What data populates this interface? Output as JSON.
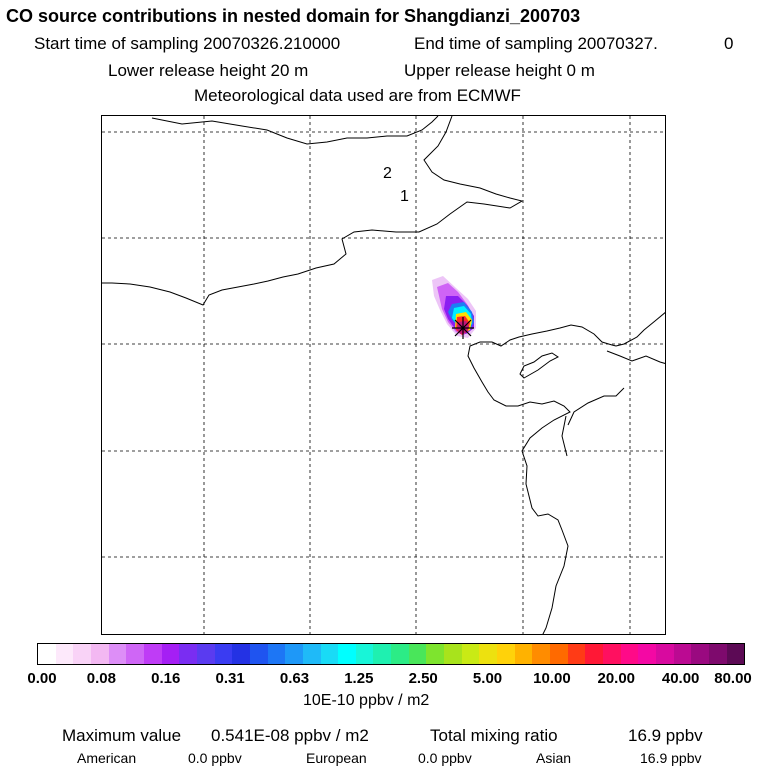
{
  "header": {
    "title": "CO  source contributions in nested domain for Shangdianzi_200703",
    "start_label": "Start time of sampling 20070326.210000",
    "end_label": "End time of sampling 20070327.",
    "end_value": "0",
    "lower_release": "Lower release height   20 m",
    "upper_release": "Upper release height    0 m",
    "met_data": "Meteorological data used are from ECMWF"
  },
  "map": {
    "markers": [
      "2",
      "1"
    ]
  },
  "colorbar": {
    "colors": [
      "#ffffff",
      "#fde9fb",
      "#f9d3f7",
      "#f3b8f2",
      "#dd8ef7",
      "#cf66f6",
      "#bf3cf6",
      "#a51ff4",
      "#7a2df2",
      "#5a3bf0",
      "#3a3cf2",
      "#2432e4",
      "#1f54f0",
      "#1d76f5",
      "#1e98f8",
      "#1fbaf8",
      "#19dbf6",
      "#00ffff",
      "#18f5d8",
      "#1ff0b0",
      "#2cec86",
      "#49e65a",
      "#7ee42e",
      "#a8e31c",
      "#c9ea15",
      "#ede10f",
      "#ffd20a",
      "#ffb200",
      "#ff8c00",
      "#ff6a00",
      "#ff3b16",
      "#ff1836",
      "#ff1060",
      "#ff0a88",
      "#f408a4",
      "#d80a9f",
      "#bb0a92",
      "#9a0980",
      "#7e0a6d",
      "#5c0a55"
    ],
    "ticks": [
      "0.00",
      "0.08",
      "0.16",
      "0.31",
      "0.63",
      "1.25",
      "2.50",
      "5.00",
      "10.00",
      "20.00",
      "40.00",
      "80.00"
    ],
    "unit": "10E-10 ppbv / m2"
  },
  "footer": {
    "max_label": "Maximum value",
    "max_value": "0.541E-08 ppbv / m2",
    "total_label": "Total mixing ratio",
    "total_value": "16.9 ppbv",
    "american_label": "American",
    "american_value": "0.0 ppbv",
    "european_label": "European",
    "european_value": "0.0 ppbv",
    "asian_label": "Asian",
    "asian_value": "16.9 ppbv"
  }
}
